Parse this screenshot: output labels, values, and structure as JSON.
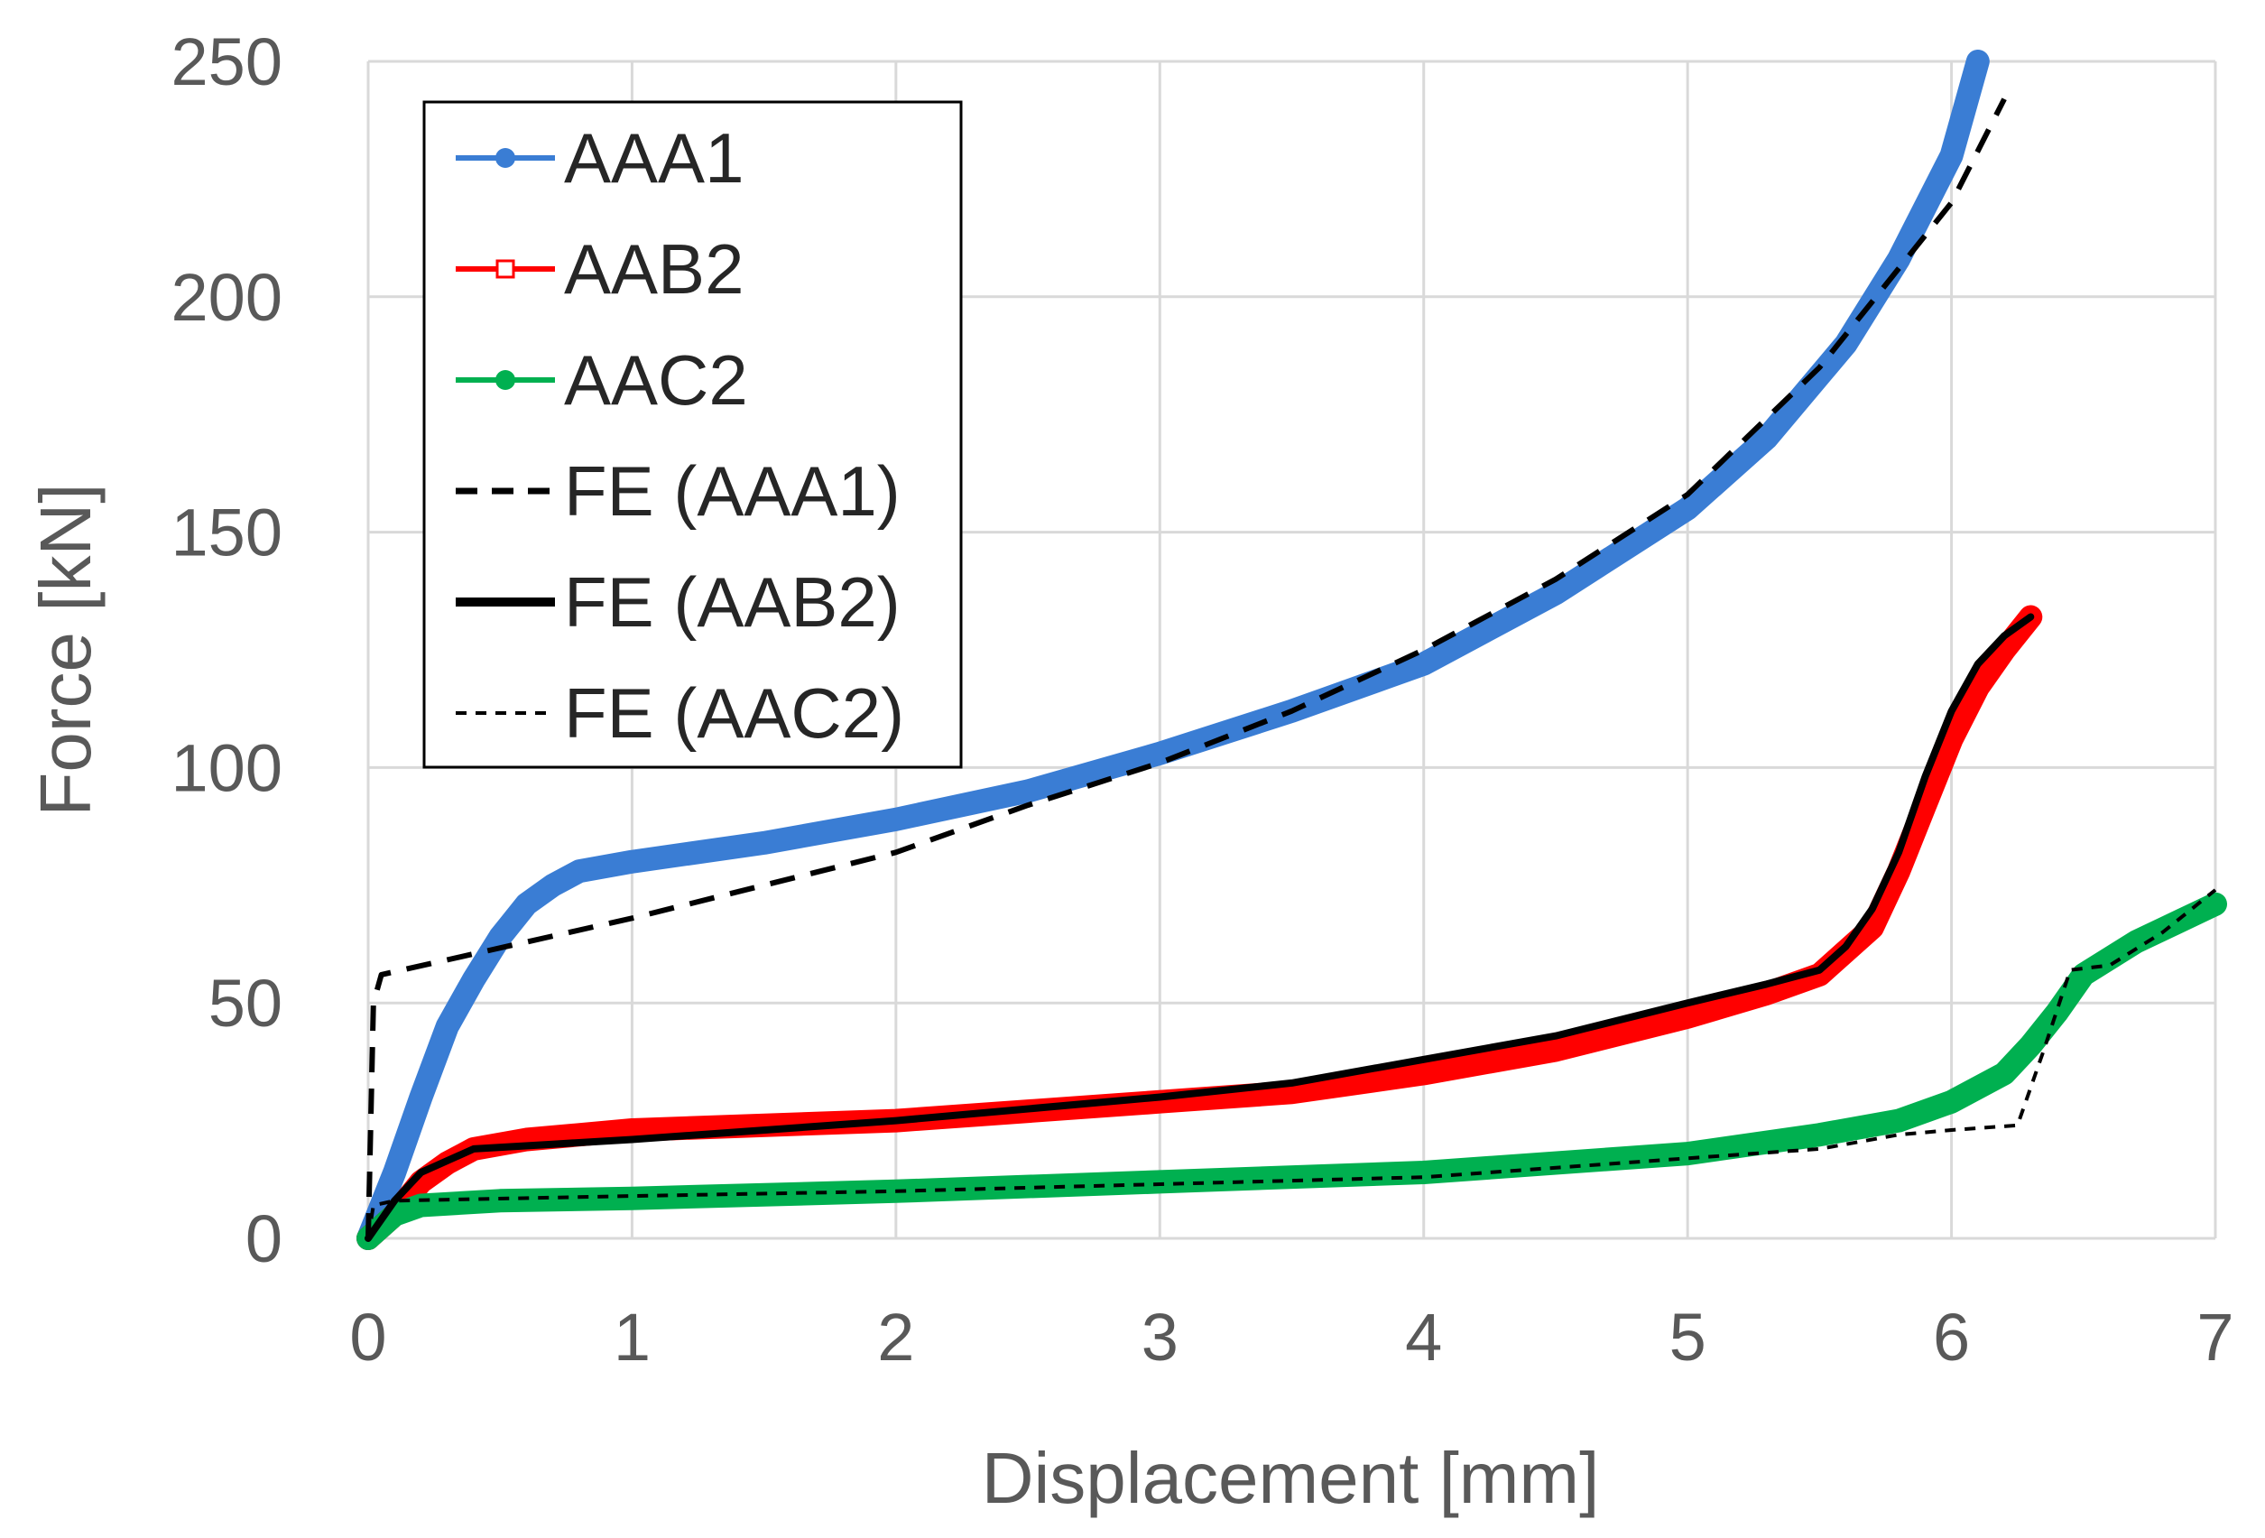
{
  "chart_data": {
    "type": "line",
    "title": "",
    "xlabel": "Displacement [mm]",
    "ylabel": "Force [kN]",
    "xlim": [
      0,
      7
    ],
    "ylim": [
      0,
      250
    ],
    "xticks": [
      0,
      1,
      2,
      3,
      4,
      5,
      6,
      7
    ],
    "yticks": [
      0,
      50,
      100,
      150,
      200,
      250
    ],
    "x_tick_labels": [
      "0",
      "1",
      "2",
      "3",
      "4",
      "5",
      "6",
      "7"
    ],
    "y_tick_labels": [
      "0",
      "50",
      "100",
      "150",
      "200",
      "250"
    ],
    "grid": true,
    "legend_position": "top-left",
    "series": [
      {
        "name": "AAA1",
        "color": "#3a7dd4",
        "style": "thick-marker-line",
        "marker": "circle",
        "x": [
          0,
          0.1,
          0.2,
          0.3,
          0.4,
          0.5,
          0.6,
          0.7,
          0.8,
          1.0,
          1.5,
          2.0,
          2.5,
          3.0,
          3.5,
          4.0,
          4.5,
          5.0,
          5.3,
          5.6,
          5.8,
          6.0,
          6.1
        ],
        "y": [
          0,
          14,
          30,
          45,
          55,
          64,
          71,
          75,
          78,
          80,
          84,
          89,
          95,
          103,
          112,
          122,
          137,
          155,
          170,
          190,
          208,
          230,
          250
        ]
      },
      {
        "name": "AAB2",
        "color": "#ff0000",
        "style": "thick-marker-line",
        "marker": "square-open",
        "x": [
          0,
          0.1,
          0.2,
          0.3,
          0.4,
          0.6,
          1.0,
          2.0,
          3.0,
          3.5,
          4.0,
          4.5,
          5.0,
          5.3,
          5.5,
          5.7,
          5.8,
          5.9,
          6.0,
          6.1,
          6.2,
          6.3
        ],
        "y": [
          0,
          5,
          12,
          16,
          19,
          21,
          23,
          25,
          29,
          31,
          35,
          40,
          47,
          52,
          56,
          66,
          78,
          92,
          106,
          117,
          125,
          132
        ]
      },
      {
        "name": "AAC2",
        "color": "#00b050",
        "style": "thick-marker-line",
        "marker": "circle",
        "x": [
          0,
          0.1,
          0.2,
          0.5,
          1.0,
          2.0,
          3.0,
          4.0,
          5.0,
          5.5,
          5.8,
          6.0,
          6.2,
          6.3,
          6.4,
          6.5,
          6.7,
          7.0
        ],
        "y": [
          0,
          5,
          7,
          8,
          8.5,
          10,
          12,
          14,
          18,
          22,
          25,
          29,
          35,
          41,
          48,
          56,
          63,
          71
        ]
      },
      {
        "name": "FE (AAA1)",
        "color": "#000000",
        "style": "dashed",
        "x": [
          0,
          0.02,
          0.05,
          1.0,
          2.0,
          2.5,
          3.0,
          3.5,
          4.0,
          4.5,
          5.0,
          5.5,
          6.0,
          6.2
        ],
        "y": [
          0,
          50,
          56,
          68,
          82,
          92,
          101,
          112,
          125,
          140,
          158,
          185,
          220,
          242
        ]
      },
      {
        "name": "FE (AAB2)",
        "color": "#000000",
        "style": "solid",
        "x": [
          0,
          0.1,
          0.2,
          0.4,
          0.7,
          1.0,
          2.0,
          3.0,
          3.5,
          4.0,
          4.5,
          5.0,
          5.3,
          5.5,
          5.6,
          5.7,
          5.8,
          5.9,
          6.0,
          6.1,
          6.2,
          6.3
        ],
        "y": [
          0,
          8,
          14,
          19,
          20,
          21,
          25,
          30,
          33,
          38,
          43,
          50,
          54,
          57,
          62,
          70,
          82,
          98,
          112,
          122,
          128,
          132
        ]
      },
      {
        "name": "FE (AAC2)",
        "color": "#000000",
        "style": "dotted",
        "x": [
          0,
          0.02,
          0.1,
          1.0,
          2.0,
          3.0,
          4.0,
          5.0,
          5.5,
          5.8,
          6.0,
          6.25,
          6.35,
          6.45,
          6.6,
          6.8,
          7.0
        ],
        "y": [
          0,
          7,
          8,
          9,
          10,
          11.5,
          13,
          17,
          19,
          22,
          23,
          24,
          40,
          57,
          58,
          65,
          74
        ]
      }
    ]
  }
}
